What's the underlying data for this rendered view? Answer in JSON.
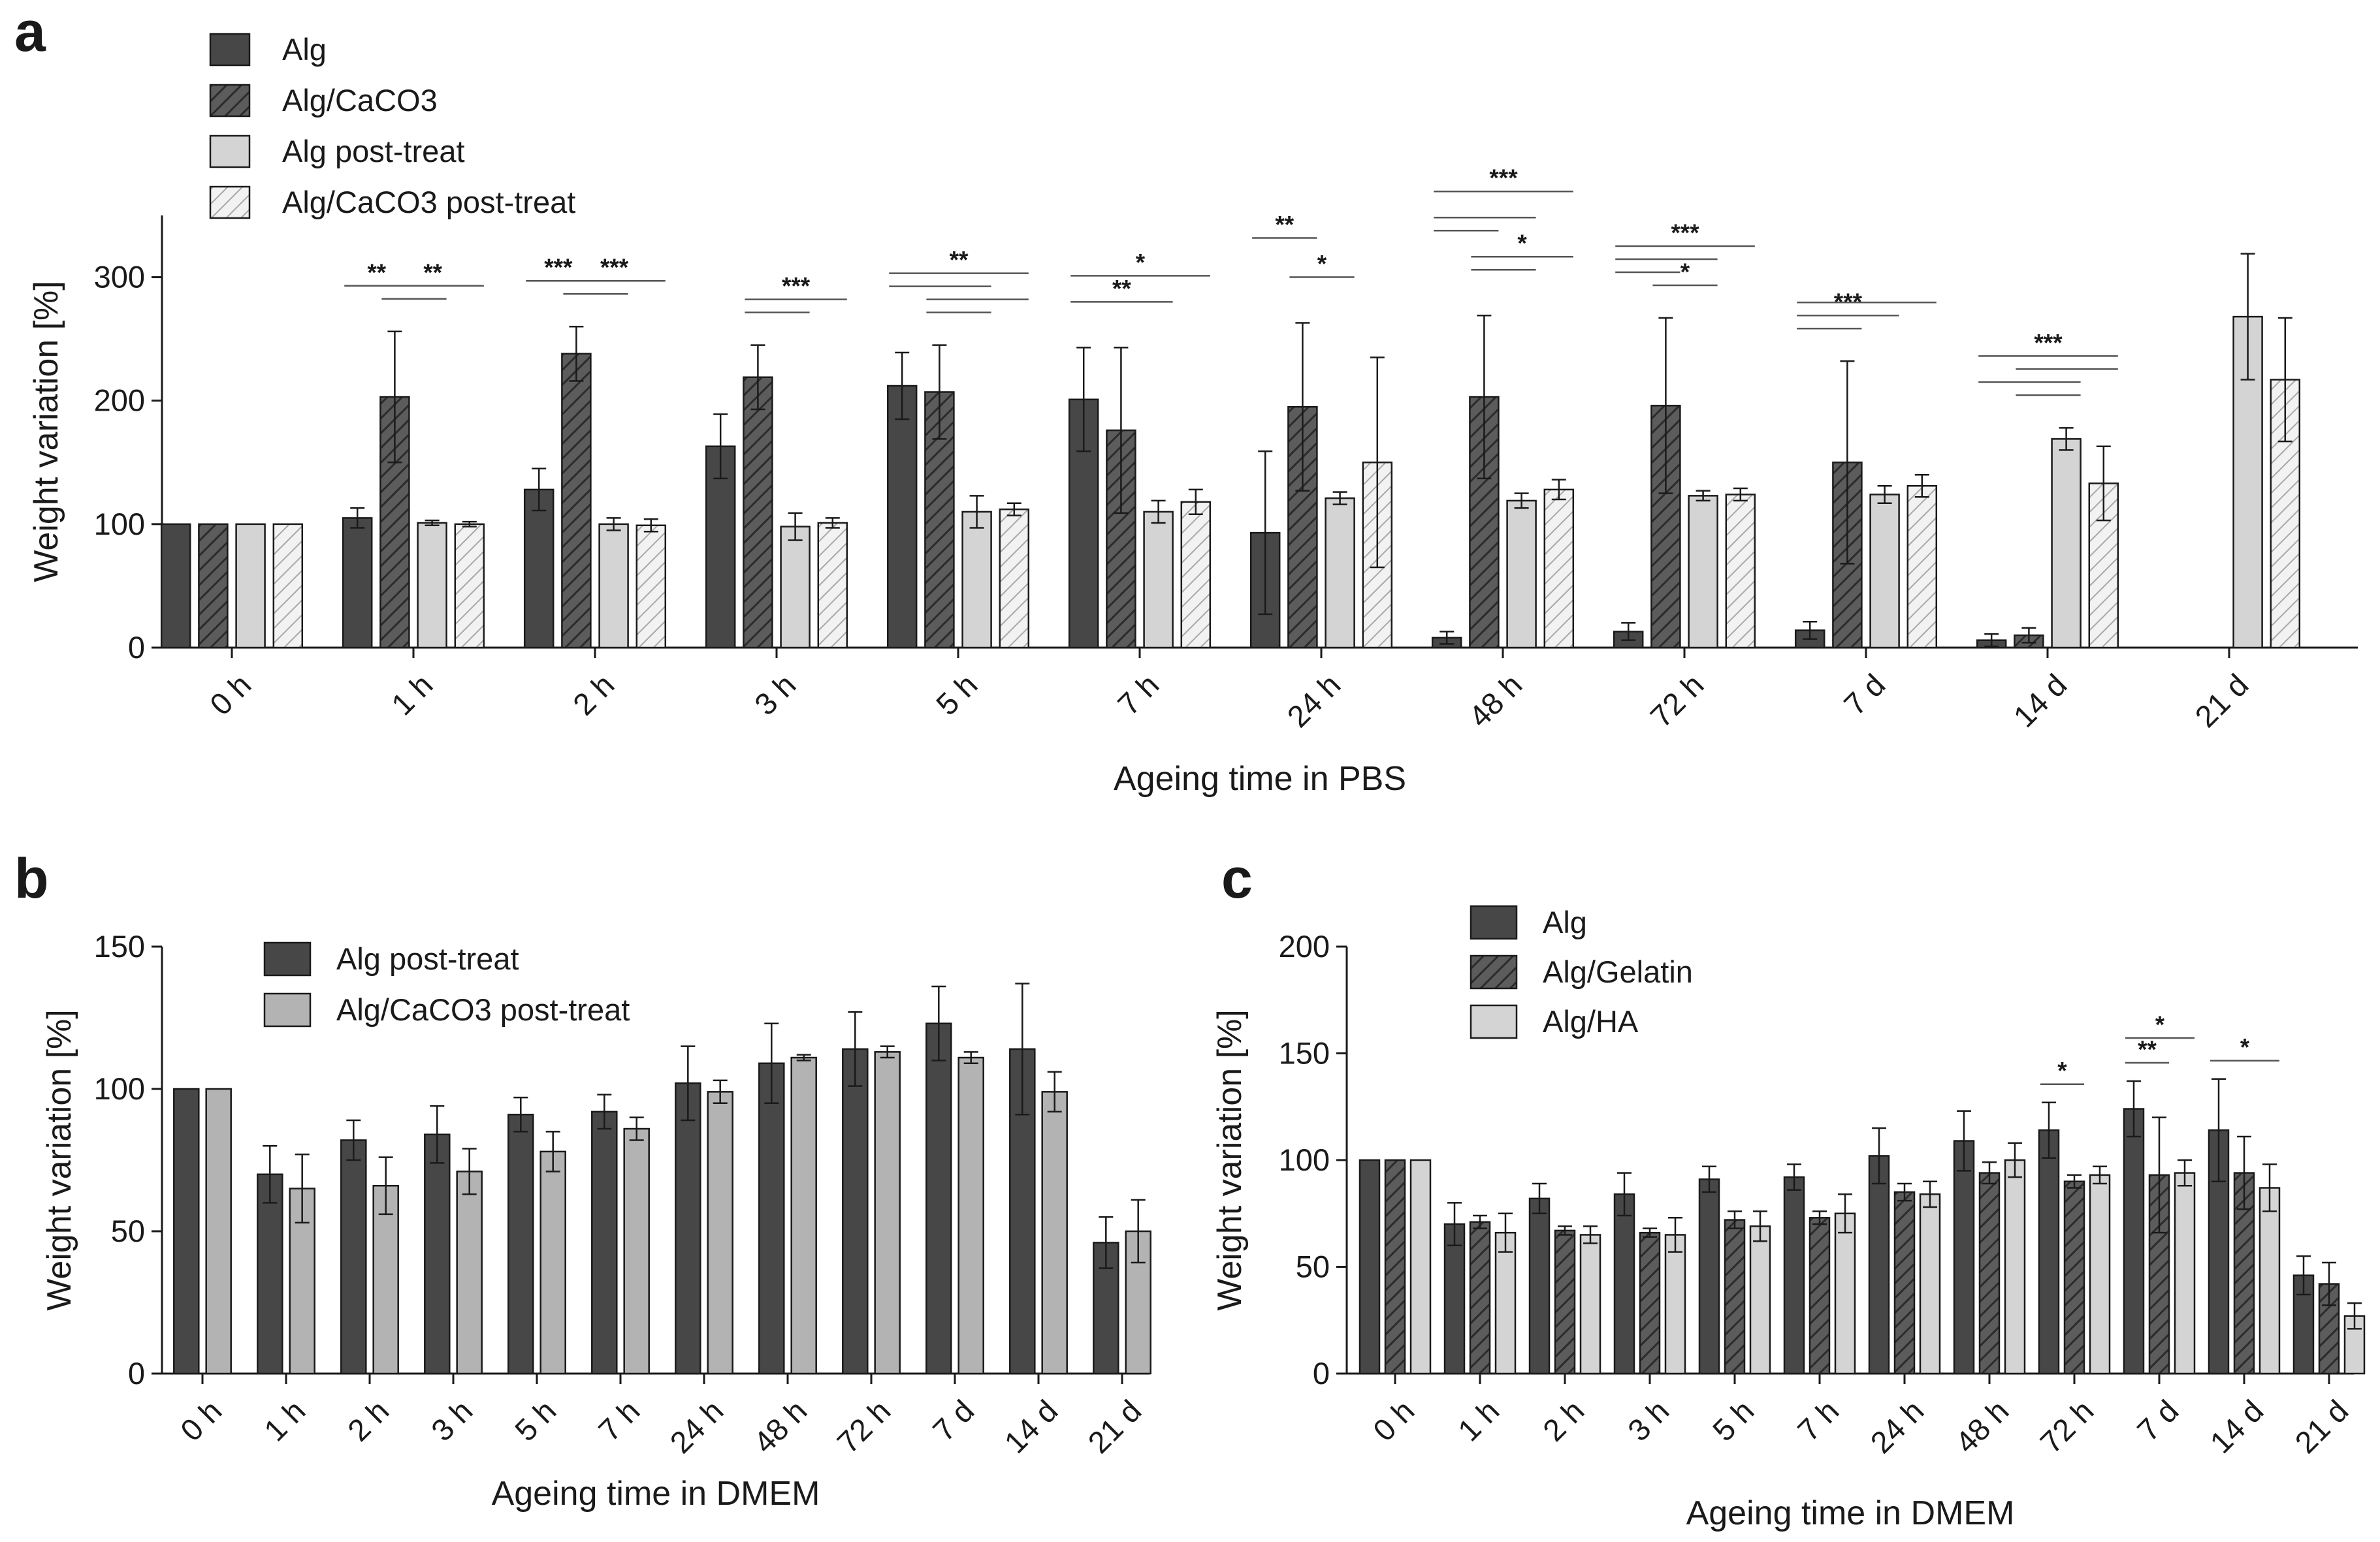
{
  "colors": {
    "dark": "#474747",
    "hatched_dark": "#5c5c5c",
    "light": "#d4d4d4",
    "hatched_light": "#ececec",
    "b_light": "#b3b3b3",
    "axis": "#1a1a1a"
  },
  "chart_data": [
    {
      "panel": "a",
      "type": "bar",
      "xlabel": "Ageing time in PBS",
      "ylabel": "Weight variation [%]",
      "ylim": [
        0,
        350
      ],
      "yticks": [
        0,
        100,
        200,
        300
      ],
      "categories": [
        "0 h",
        "1 h",
        "2 h",
        "3 h",
        "5 h",
        "7 h",
        "24 h",
        "48 h",
        "72 h",
        "7 d",
        "14 d",
        "21 d"
      ],
      "legend_position": "top-left",
      "series": [
        {
          "name": "Alg",
          "style": "dark",
          "values": [
            100,
            105,
            128,
            163,
            212,
            201,
            93,
            8,
            13,
            14,
            6,
            null
          ],
          "errors": [
            0,
            8,
            17,
            26,
            27,
            42,
            66,
            5,
            7,
            7,
            5,
            null
          ]
        },
        {
          "name": "Alg/CaCO3",
          "style": "hatched_dark",
          "values": [
            100,
            203,
            238,
            219,
            207,
            176,
            195,
            203,
            196,
            150,
            10,
            null
          ],
          "errors": [
            0,
            53,
            22,
            26,
            38,
            67,
            68,
            66,
            71,
            82,
            6,
            null
          ]
        },
        {
          "name": "Alg post-treat",
          "style": "light",
          "values": [
            100,
            101,
            100,
            98,
            110,
            110,
            121,
            119,
            123,
            124,
            169,
            268
          ],
          "errors": [
            0,
            2,
            5,
            11,
            13,
            9,
            5,
            6,
            4,
            7,
            9,
            51
          ]
        },
        {
          "name": "Alg/CaCO3 post-treat",
          "style": "hatched_light",
          "values": [
            100,
            100,
            99,
            101,
            112,
            118,
            150,
            128,
            124,
            131,
            133,
            217
          ],
          "errors": [
            0,
            2,
            5,
            4,
            5,
            10,
            85,
            8,
            5,
            9,
            30,
            50
          ]
        }
      ],
      "significance": [
        {
          "category": "1 h",
          "lines": [
            {
              "from": 0,
              "to": 1,
              "level": 1,
              "label": "**"
            },
            {
              "from": 1,
              "to": 2,
              "level": 0
            },
            {
              "from": 1,
              "to": 3,
              "level": 1,
              "label": "**"
            }
          ]
        },
        {
          "category": "2 h",
          "lines": [
            {
              "from": 0,
              "to": 1,
              "level": 1,
              "label": "***"
            },
            {
              "from": 1,
              "to": 2,
              "level": 0
            },
            {
              "from": 1,
              "to": 3,
              "level": 1,
              "label": "***"
            }
          ]
        },
        {
          "category": "3 h",
          "lines": [
            {
              "from": 1,
              "to": 2,
              "level": 0
            },
            {
              "from": 1,
              "to": 3,
              "level": 1,
              "label": "***"
            }
          ]
        },
        {
          "category": "5 h",
          "lines": [
            {
              "from": 1,
              "to": 2,
              "level": 0
            },
            {
              "from": 1,
              "to": 3,
              "level": 1
            },
            {
              "from": 0,
              "to": 2,
              "level": 2
            },
            {
              "from": 0,
              "to": 3,
              "level": 3,
              "label": "**"
            }
          ]
        },
        {
          "category": "7 h",
          "lines": [
            {
              "from": 0,
              "to": 2,
              "level": 1,
              "label": "**"
            },
            {
              "from": 0,
              "to": 3,
              "level": 3,
              "label": "*"
            }
          ]
        },
        {
          "category": "24 h",
          "lines": [
            {
              "from": 0,
              "to": 1,
              "level": 4,
              "label": "**"
            },
            {
              "from": 1,
              "to": 2,
              "level": 1,
              "label": "*"
            }
          ]
        },
        {
          "category": "48 h",
          "lines": [
            {
              "from": 0,
              "to": 1,
              "level": 4
            },
            {
              "from": 0,
              "to": 2,
              "level": 5
            },
            {
              "from": 0,
              "to": 3,
              "level": 7,
              "label": "***"
            },
            {
              "from": 1,
              "to": 2,
              "level": 1
            },
            {
              "from": 1,
              "to": 3,
              "level": 2,
              "label": "*"
            }
          ]
        },
        {
          "category": "72 h",
          "lines": [
            {
              "from": 0,
              "to": 1,
              "level": 1
            },
            {
              "from": 0,
              "to": 2,
              "level": 2
            },
            {
              "from": 0,
              "to": 3,
              "level": 3,
              "label": "***"
            },
            {
              "from": 1,
              "to": 2,
              "level": 0,
              "label": "*"
            }
          ]
        },
        {
          "category": "7 d",
          "lines": [
            {
              "from": 0,
              "to": 1,
              "level": 0
            },
            {
              "from": 0,
              "to": 2,
              "level": 1,
              "label": "***"
            },
            {
              "from": 0,
              "to": 3,
              "level": 2
            }
          ]
        },
        {
          "category": "14 d",
          "lines": [
            {
              "from": 1,
              "to": 2,
              "level": 0
            },
            {
              "from": 0,
              "to": 2,
              "level": 1
            },
            {
              "from": 1,
              "to": 3,
              "level": 2
            },
            {
              "from": 0,
              "to": 3,
              "level": 3,
              "label": "***"
            }
          ]
        }
      ]
    },
    {
      "panel": "b",
      "type": "bar",
      "xlabel": "Ageing time in DMEM",
      "ylabel": "Weight variation [%]",
      "ylim": [
        0,
        150
      ],
      "yticks": [
        0,
        50,
        100,
        150
      ],
      "categories": [
        "0 h",
        "1 h",
        "2 h",
        "3 h",
        "5 h",
        "7 h",
        "24 h",
        "48 h",
        "72 h",
        "7 d",
        "14 d",
        "21 d"
      ],
      "legend_position": "top-left",
      "series": [
        {
          "name": "Alg post-treat",
          "style": "dark",
          "values": [
            100,
            70,
            82,
            84,
            91,
            92,
            102,
            109,
            114,
            123,
            114,
            46
          ],
          "errors": [
            0,
            10,
            7,
            10,
            6,
            6,
            13,
            14,
            13,
            13,
            23,
            9
          ]
        },
        {
          "name": "Alg/CaCO3 post-treat",
          "style": "b_light",
          "values": [
            100,
            65,
            66,
            71,
            78,
            86,
            99,
            111,
            113,
            111,
            99,
            50
          ],
          "errors": [
            0,
            12,
            10,
            8,
            7,
            4,
            4,
            1,
            2,
            2,
            7,
            11
          ]
        }
      ]
    },
    {
      "panel": "c",
      "type": "bar",
      "xlabel": "Ageing time in DMEM",
      "ylabel": "Weight variation [%]",
      "ylim": [
        0,
        200
      ],
      "yticks": [
        0,
        50,
        100,
        150,
        200
      ],
      "categories": [
        "0 h",
        "1 h",
        "2 h",
        "3 h",
        "5 h",
        "7 h",
        "24 h",
        "48 h",
        "72 h",
        "7 d",
        "14 d",
        "21 d"
      ],
      "legend_position": "top-left",
      "series": [
        {
          "name": "Alg",
          "style": "dark",
          "values": [
            100,
            70,
            82,
            84,
            91,
            92,
            102,
            109,
            114,
            124,
            114,
            46
          ],
          "errors": [
            0,
            10,
            7,
            10,
            6,
            6,
            13,
            14,
            13,
            13,
            24,
            9
          ]
        },
        {
          "name": "Alg/Gelatin",
          "style": "hatched_dark",
          "values": [
            100,
            71,
            67,
            66,
            72,
            73,
            85,
            94,
            90,
            93,
            94,
            42
          ],
          "errors": [
            0,
            3,
            2,
            2,
            4,
            3,
            4,
            5,
            3,
            27,
            17,
            10
          ]
        },
        {
          "name": "Alg/HA",
          "style": "light",
          "values": [
            100,
            66,
            65,
            65,
            69,
            75,
            84,
            100,
            93,
            94,
            87,
            27
          ],
          "errors": [
            0,
            9,
            4,
            8,
            7,
            9,
            6,
            8,
            4,
            6,
            11,
            6
          ]
        }
      ],
      "significance": [
        {
          "category": "72 h",
          "lines": [
            {
              "from": 0,
              "to": 1,
              "level": 0,
              "label": "*"
            }
          ]
        },
        {
          "category": "7 d",
          "lines": [
            {
              "from": 0,
              "to": 1,
              "level": 0,
              "label": "**"
            },
            {
              "from": 0,
              "to": 2,
              "level": 1,
              "label": "*"
            }
          ]
        },
        {
          "category": "14 d",
          "lines": [
            {
              "from": 0,
              "to": 2,
              "level": 0,
              "label": "*"
            }
          ]
        }
      ]
    }
  ]
}
